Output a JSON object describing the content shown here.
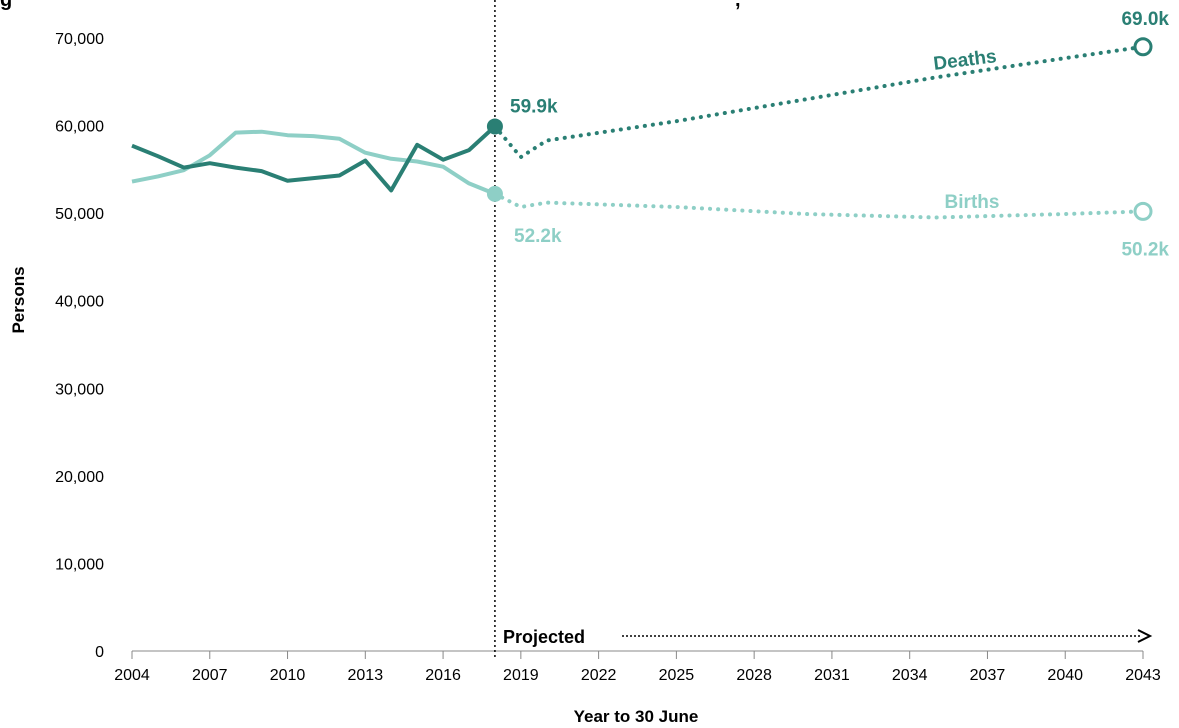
{
  "chart_data": {
    "type": "line",
    "title_fragment": "g",
    "title_fragment_2": ",",
    "xlabel": "Year to 30 June",
    "ylabel": "Persons",
    "xlim": [
      2004,
      2043
    ],
    "ylim": [
      0,
      70000
    ],
    "x_ticks": [
      "2004",
      "2007",
      "2010",
      "2013",
      "2016",
      "2019",
      "2022",
      "2025",
      "2028",
      "2031",
      "2034",
      "2037",
      "2040",
      "2043"
    ],
    "y_ticks": [
      "0",
      "10,000",
      "20,000",
      "30,000",
      "40,000",
      "50,000",
      "60,000",
      "70,000"
    ],
    "grid": false,
    "projection_start": 2018,
    "projected_label": "Projected",
    "series": [
      {
        "name": "Deaths",
        "color": "#2a7f74",
        "actual": {
          "x": [
            2004,
            2005,
            2006,
            2007,
            2008,
            2009,
            2010,
            2011,
            2012,
            2013,
            2014,
            2015,
            2016,
            2017,
            2018
          ],
          "y": [
            57700,
            56500,
            55200,
            55700,
            55200,
            54800,
            53700,
            54000,
            54300,
            56000,
            52600,
            57800,
            56100,
            57200,
            59900
          ]
        },
        "projected": {
          "x": [
            2018,
            2019,
            2020,
            2025,
            2030,
            2035,
            2040,
            2043
          ],
          "y": [
            59900,
            56400,
            58300,
            60500,
            63000,
            65500,
            67700,
            69000
          ]
        },
        "start_label": "59.9k",
        "end_label": "69.0k"
      },
      {
        "name": "Births",
        "color": "#8ecfc6",
        "actual": {
          "x": [
            2004,
            2005,
            2006,
            2007,
            2008,
            2009,
            2010,
            2011,
            2012,
            2013,
            2014,
            2015,
            2016,
            2017,
            2018
          ],
          "y": [
            53600,
            54200,
            54900,
            56600,
            59200,
            59300,
            58900,
            58800,
            58500,
            56900,
            56200,
            55900,
            55300,
            53400,
            52200
          ]
        },
        "projected": {
          "x": [
            2018,
            2019,
            2020,
            2025,
            2030,
            2035,
            2040,
            2043
          ],
          "y": [
            52200,
            50700,
            51200,
            50700,
            49900,
            49500,
            49900,
            50200
          ]
        },
        "start_label": "52.2k",
        "end_label": "50.2k"
      }
    ]
  }
}
